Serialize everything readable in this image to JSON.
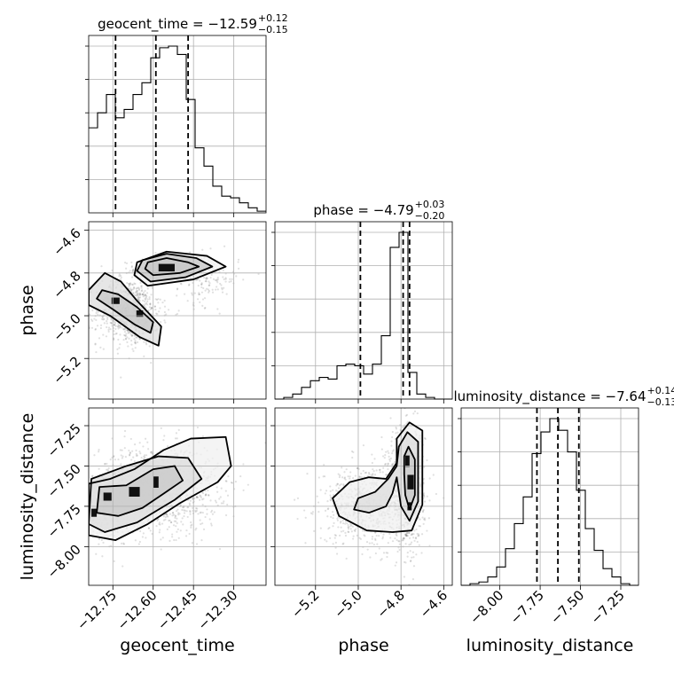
{
  "chart_data": {
    "type": "corner",
    "params": [
      "geocent_time",
      "phase",
      "luminosity_distance"
    ],
    "axis_labels": [
      "geocent_time",
      "phase",
      "luminosity_distance"
    ],
    "ranges": {
      "geocent_time": [
        -12.84,
        -12.18
      ],
      "phase": [
        -5.39,
        -4.56
      ],
      "luminosity_distance": [
        -8.24,
        -7.14
      ]
    },
    "ticks": {
      "geocent_time": [
        -12.75,
        -12.6,
        -12.45,
        -12.3
      ],
      "phase": [
        -5.2,
        -5.0,
        -4.8,
        -4.6
      ],
      "luminosity_distance": [
        -8.0,
        -7.75,
        -7.5,
        -7.25
      ]
    },
    "tick_labels": {
      "geocent_time": [
        "−12.75",
        "−12.60",
        "−12.45",
        "−12.30"
      ],
      "phase": [
        "−5.2",
        "−5.0",
        "−4.8",
        "−4.6"
      ],
      "luminosity_distance": [
        "−8.00",
        "−7.75",
        "−7.50",
        "−7.25"
      ]
    },
    "titles": [
      {
        "name": "geocent_time",
        "main": "geocent_time = −12.59",
        "sup": "+0.12",
        "sub": "−0.15"
      },
      {
        "name": "phase",
        "main": "phase = −4.79",
        "sup": "+0.03",
        "sub": "−0.20"
      },
      {
        "name": "luminosity_distance",
        "main": "luminosity_distance = −7.64",
        "sup": "+0.14",
        "sub": "−0.13"
      }
    ],
    "quantiles": {
      "geocent_time": [
        -12.74,
        -12.59,
        -12.47
      ],
      "phase": [
        -4.99,
        -4.79,
        -4.76
      ],
      "luminosity_distance": [
        -7.77,
        -7.64,
        -7.51
      ]
    },
    "histograms": {
      "geocent_time": {
        "edges": [
          -12.84,
          -12.807,
          -12.774,
          -12.741,
          -12.708,
          -12.675,
          -12.642,
          -12.609,
          -12.576,
          -12.543,
          -12.51,
          -12.477,
          -12.444,
          -12.411,
          -12.378,
          -12.345,
          -12.312,
          -12.279,
          -12.246,
          -12.213,
          -12.18
        ],
        "counts": [
          0.51,
          0.6,
          0.71,
          0.57,
          0.62,
          0.71,
          0.78,
          0.93,
          0.99,
          1.0,
          0.95,
          0.68,
          0.39,
          0.28,
          0.16,
          0.1,
          0.09,
          0.06,
          0.03,
          0.01
        ]
      },
      "phase": {
        "edges": [
          -5.39,
          -5.3485,
          -5.307,
          -5.2655,
          -5.224,
          -5.1825,
          -5.141,
          -5.0995,
          -5.058,
          -5.0165,
          -4.975,
          -4.9335,
          -4.892,
          -4.8505,
          -4.809,
          -4.7675,
          -4.726,
          -4.6845,
          -4.643,
          -4.6015,
          -4.56
        ],
        "counts": [
          0.0,
          0.01,
          0.03,
          0.07,
          0.11,
          0.13,
          0.12,
          0.2,
          0.21,
          0.2,
          0.15,
          0.21,
          0.38,
          0.91,
          1.0,
          0.16,
          0.03,
          0.01,
          0.0,
          0.0
        ]
      },
      "luminosity_distance": {
        "edges": [
          -8.24,
          -8.185,
          -8.13,
          -8.075,
          -8.02,
          -7.965,
          -7.91,
          -7.855,
          -7.8,
          -7.745,
          -7.69,
          -7.635,
          -7.58,
          -7.525,
          -7.47,
          -7.415,
          -7.36,
          -7.305,
          -7.25,
          -7.195,
          -7.14
        ],
        "counts": [
          0.0,
          0.01,
          0.02,
          0.05,
          0.11,
          0.22,
          0.37,
          0.53,
          0.79,
          0.92,
          1.0,
          0.93,
          0.8,
          0.57,
          0.34,
          0.21,
          0.1,
          0.05,
          0.01,
          0.0
        ]
      }
    },
    "scatter_pairs": [
      {
        "x_param": "geocent_time",
        "y_param": "phase",
        "clusters": [
          {
            "x": -12.55,
            "y": -4.78,
            "sx": 0.06,
            "sy": 0.025,
            "n": 500
          },
          {
            "x": -12.69,
            "y": -4.98,
            "sx": 0.06,
            "sy": 0.08,
            "n": 700
          },
          {
            "x": -12.4,
            "y": -4.83,
            "sx": 0.06,
            "sy": 0.06,
            "n": 150
          }
        ],
        "hotspots": [
          {
            "x": -12.55,
            "y": -4.775,
            "w": 0.06,
            "h": 0.035
          },
          {
            "x": -12.74,
            "y": -4.93,
            "w": 0.03,
            "h": 0.03
          },
          {
            "x": -12.65,
            "y": -4.99,
            "w": 0.025,
            "h": 0.03
          }
        ],
        "contours": [
          [
            [
              -12.62,
              -4.75
            ],
            [
              -12.55,
              -4.73
            ],
            [
              -12.47,
              -4.75
            ],
            [
              -12.43,
              -4.77
            ],
            [
              -12.5,
              -4.8
            ],
            [
              -12.6,
              -4.81
            ],
            [
              -12.63,
              -4.78
            ]
          ],
          [
            [
              -12.64,
              -4.74
            ],
            [
              -12.55,
              -4.71
            ],
            [
              -12.44,
              -4.73
            ],
            [
              -12.38,
              -4.77
            ],
            [
              -12.48,
              -4.82
            ],
            [
              -12.61,
              -4.84
            ],
            [
              -12.66,
              -4.79
            ]
          ],
          [
            [
              -12.79,
              -4.88
            ],
            [
              -12.73,
              -4.9
            ],
            [
              -12.66,
              -4.96
            ],
            [
              -12.6,
              -5.03
            ],
            [
              -12.61,
              -5.08
            ],
            [
              -12.67,
              -5.04
            ],
            [
              -12.75,
              -4.97
            ],
            [
              -12.81,
              -4.92
            ]
          ],
          [
            [
              -12.84,
              -4.88
            ],
            [
              -12.78,
              -4.8
            ],
            [
              -12.72,
              -4.84
            ],
            [
              -12.66,
              -4.93
            ],
            [
              -12.57,
              -5.05
            ],
            [
              -12.58,
              -5.14
            ],
            [
              -12.65,
              -5.1
            ],
            [
              -12.76,
              -5.0
            ],
            [
              -12.84,
              -4.95
            ]
          ],
          [
            [
              -12.66,
              -4.75
            ],
            [
              -12.55,
              -4.7
            ],
            [
              -12.4,
              -4.72
            ],
            [
              -12.33,
              -4.77
            ],
            [
              -12.45,
              -4.83
            ],
            [
              -12.62,
              -4.86
            ],
            [
              -12.67,
              -4.81
            ]
          ]
        ]
      },
      {
        "x_param": "geocent_time",
        "y_param": "luminosity_distance",
        "clusters": [
          {
            "x": -12.58,
            "y": -7.64,
            "sx": 0.11,
            "sy": 0.13,
            "n": 1300
          },
          {
            "x": -12.78,
            "y": -7.78,
            "sx": 0.04,
            "sy": 0.1,
            "n": 250
          }
        ],
        "hotspots": [
          {
            "x": -12.59,
            "y": -7.6,
            "w": 0.02,
            "h": 0.07
          },
          {
            "x": -12.67,
            "y": -7.66,
            "w": 0.04,
            "h": 0.06
          },
          {
            "x": -12.77,
            "y": -7.69,
            "w": 0.03,
            "h": 0.05
          },
          {
            "x": -12.82,
            "y": -7.79,
            "w": 0.02,
            "h": 0.05
          }
        ],
        "contours": [
          [
            [
              -12.8,
              -7.63
            ],
            [
              -12.7,
              -7.62
            ],
            [
              -12.6,
              -7.52
            ],
            [
              -12.52,
              -7.5
            ],
            [
              -12.49,
              -7.59
            ],
            [
              -12.56,
              -7.67
            ],
            [
              -12.64,
              -7.76
            ],
            [
              -12.73,
              -7.81
            ],
            [
              -12.81,
              -7.79
            ]
          ],
          [
            [
              -12.83,
              -7.58
            ],
            [
              -12.7,
              -7.5
            ],
            [
              -12.58,
              -7.44
            ],
            [
              -12.47,
              -7.45
            ],
            [
              -12.42,
              -7.58
            ],
            [
              -12.52,
              -7.71
            ],
            [
              -12.66,
              -7.85
            ],
            [
              -12.78,
              -7.91
            ],
            [
              -12.84,
              -7.86
            ]
          ],
          [
            [
              -12.84,
              -7.61
            ],
            [
              -12.76,
              -7.58
            ],
            [
              -12.67,
              -7.52
            ],
            [
              -12.56,
              -7.4
            ],
            [
              -12.46,
              -7.33
            ],
            [
              -12.33,
              -7.32
            ],
            [
              -12.31,
              -7.5
            ],
            [
              -12.36,
              -7.6
            ],
            [
              -12.5,
              -7.73
            ],
            [
              -12.62,
              -7.86
            ],
            [
              -12.74,
              -7.96
            ],
            [
              -12.84,
              -7.93
            ]
          ]
        ]
      },
      {
        "x_param": "phase",
        "y_param": "luminosity_distance",
        "clusters": [
          {
            "x": -4.77,
            "y": -7.62,
            "sx": 0.04,
            "sy": 0.18,
            "n": 900
          },
          {
            "x": -4.96,
            "y": -7.74,
            "sx": 0.11,
            "sy": 0.12,
            "n": 700
          }
        ],
        "hotspots": [
          {
            "x": -4.755,
            "y": -7.6,
            "w": 0.03,
            "h": 0.09
          },
          {
            "x": -4.77,
            "y": -7.47,
            "w": 0.02,
            "h": 0.07
          },
          {
            "x": -4.76,
            "y": -7.75,
            "w": 0.02,
            "h": 0.05
          }
        ],
        "contours": [
          [
            [
              -4.785,
              -7.44
            ],
            [
              -4.765,
              -7.38
            ],
            [
              -4.735,
              -7.46
            ],
            [
              -4.735,
              -7.68
            ],
            [
              -4.76,
              -7.77
            ],
            [
              -4.78,
              -7.68
            ],
            [
              -4.785,
              -7.55
            ]
          ],
          [
            [
              -4.81,
              -7.38
            ],
            [
              -4.77,
              -7.29
            ],
            [
              -4.72,
              -7.35
            ],
            [
              -4.72,
              -7.72
            ],
            [
              -4.76,
              -7.84
            ],
            [
              -4.8,
              -7.75
            ],
            [
              -4.82,
              -7.57
            ],
            [
              -4.84,
              -7.67
            ],
            [
              -4.87,
              -7.75
            ],
            [
              -4.95,
              -7.79
            ],
            [
              -5.02,
              -7.77
            ],
            [
              -5.0,
              -7.7
            ],
            [
              -4.92,
              -7.66
            ],
            [
              -4.86,
              -7.58
            ],
            [
              -4.82,
              -7.5
            ]
          ],
          [
            [
              -4.82,
              -7.33
            ],
            [
              -4.76,
              -7.23
            ],
            [
              -4.7,
              -7.28
            ],
            [
              -4.7,
              -7.74
            ],
            [
              -4.75,
              -7.9
            ],
            [
              -4.84,
              -7.91
            ],
            [
              -4.96,
              -7.9
            ],
            [
              -5.09,
              -7.81
            ],
            [
              -5.12,
              -7.7
            ],
            [
              -5.04,
              -7.6
            ],
            [
              -4.95,
              -7.57
            ],
            [
              -4.87,
              -7.58
            ],
            [
              -4.82,
              -7.48
            ]
          ]
        ]
      }
    ]
  }
}
